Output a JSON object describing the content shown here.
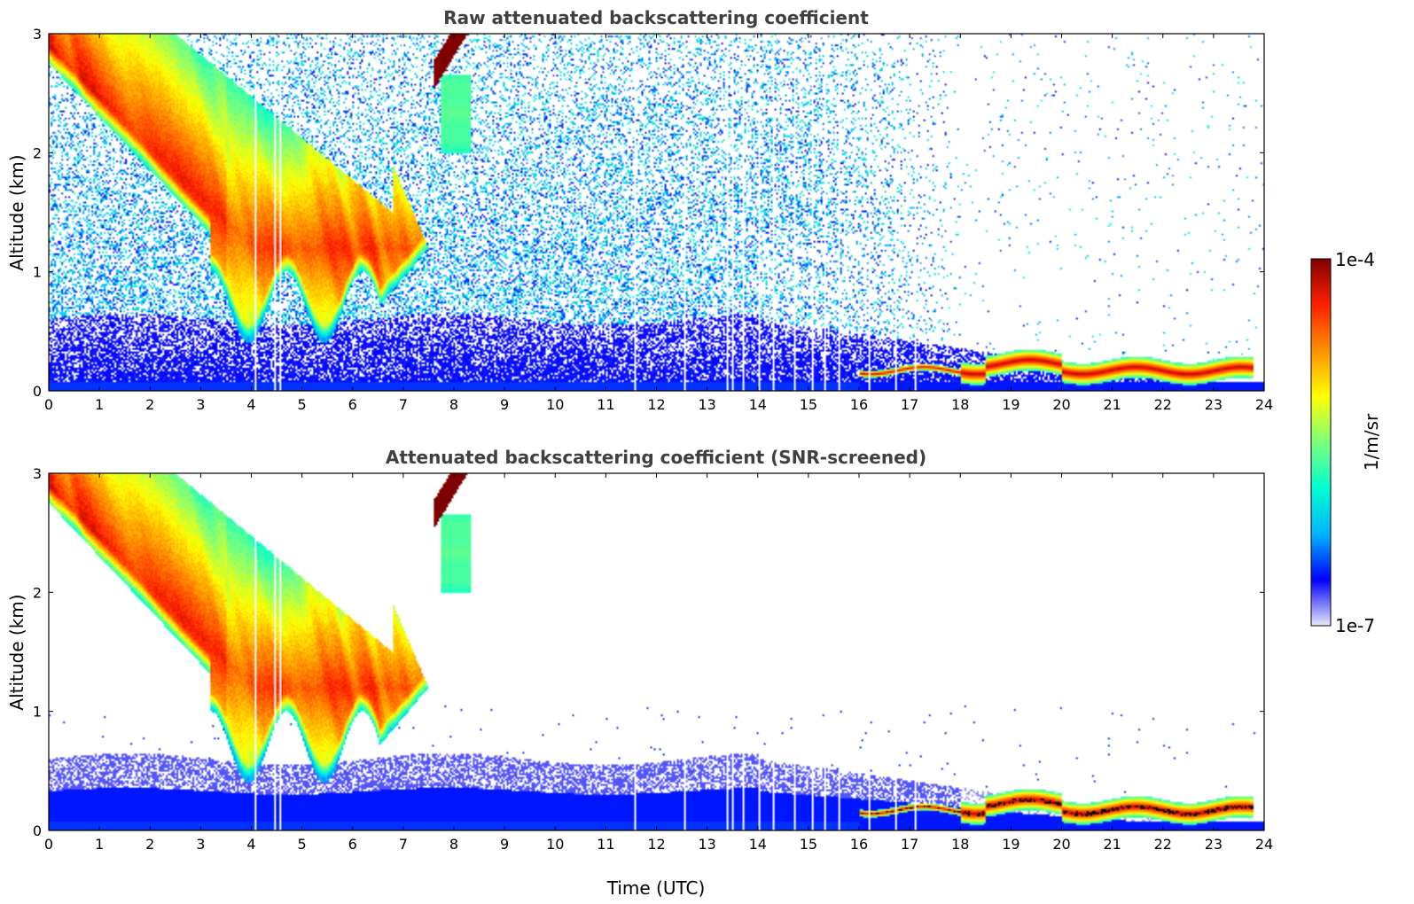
{
  "chart_data": [
    {
      "type": "heatmap",
      "title": "Raw attenuated backscattering coefficient",
      "xlabel": "",
      "ylabel": "Altitude (km)",
      "xlim": [
        0,
        24
      ],
      "ylim": [
        0,
        3
      ],
      "xticks": [
        "0",
        "1",
        "2",
        "3",
        "4",
        "5",
        "6",
        "7",
        "8",
        "9",
        "10",
        "11",
        "12",
        "13",
        "14",
        "15",
        "16",
        "17",
        "18",
        "19",
        "20",
        "21",
        "22",
        "23",
        "24"
      ],
      "yticks": [
        "0",
        "1",
        "2",
        "3"
      ],
      "screened": false
    },
    {
      "type": "heatmap",
      "title": "Attenuated backscattering coefficient (SNR-screened)",
      "xlabel": "Time (UTC)",
      "ylabel": "Altitude (km)",
      "xlim": [
        0,
        24
      ],
      "ylim": [
        0,
        3
      ],
      "xticks": [
        "0",
        "1",
        "2",
        "3",
        "4",
        "5",
        "6",
        "7",
        "8",
        "9",
        "10",
        "11",
        "12",
        "13",
        "14",
        "15",
        "16",
        "17",
        "18",
        "19",
        "20",
        "21",
        "22",
        "23",
        "24"
      ],
      "yticks": [
        "0",
        "1",
        "2",
        "3"
      ],
      "screened": true
    }
  ],
  "colorbar": {
    "label": "1/m/sr",
    "max_label": "1e-4",
    "min_label": "1e-7",
    "scale": "log",
    "colormap": [
      "#e8e8fa",
      "#0000ff",
      "#00b4ff",
      "#00ffd0",
      "#7cff7c",
      "#ffff00",
      "#ff9000",
      "#ff2000",
      "#800000"
    ]
  },
  "features": {
    "cloud_base_min_km": 0.4,
    "cloud_top_km": 3.0,
    "cloud_start_utc": 0,
    "cloud_end_utc": 7.7,
    "plume_utc": [
      7.6,
      8.4
    ],
    "plume_alt_km": [
      2.0,
      3.0
    ],
    "boundary_layer_top_km": 0.6,
    "low_layer_utc": [
      16,
      23.8
    ],
    "low_layer_alt_km": 0.17
  }
}
